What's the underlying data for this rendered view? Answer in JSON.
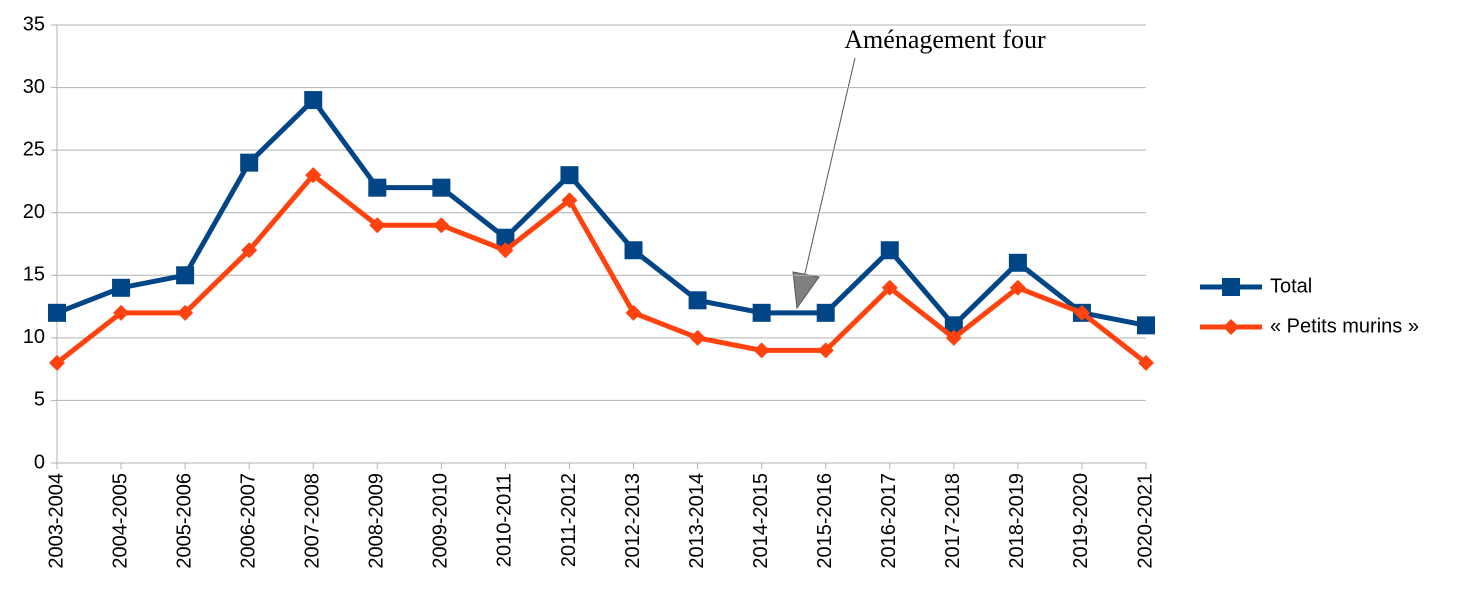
{
  "chart_data": {
    "type": "line",
    "categories": [
      "2003-2004",
      "2004-2005",
      "2005-2006",
      "2006-2007",
      "2007-2008",
      "2008-2009",
      "2009-2010",
      "2010-2011",
      "2011-2012",
      "2012-2013",
      "2013-2014",
      "2014-2015",
      "2015-2016",
      "2016-2017",
      "2017-2018",
      "2018-2019",
      "2019-2020",
      "2020-2021"
    ],
    "series": [
      {
        "name": "Total",
        "color": "#004586",
        "values": [
          12,
          14,
          15,
          24,
          29,
          22,
          22,
          18,
          23,
          17,
          13,
          12,
          12,
          17,
          11,
          16,
          12,
          11
        ]
      },
      {
        "name": "« Petits murins »",
        "color": "#ff420e",
        "values": [
          8,
          12,
          12,
          17,
          23,
          19,
          19,
          17,
          21,
          12,
          10,
          9,
          9,
          14,
          10,
          14,
          12,
          8
        ]
      }
    ],
    "ylim": [
      0,
      35
    ],
    "yticks": [
      0,
      5,
      10,
      15,
      20,
      25,
      30,
      35
    ],
    "grid": true,
    "legend": "right",
    "annotations": [
      {
        "text": "Aménagement four"
      }
    ]
  }
}
